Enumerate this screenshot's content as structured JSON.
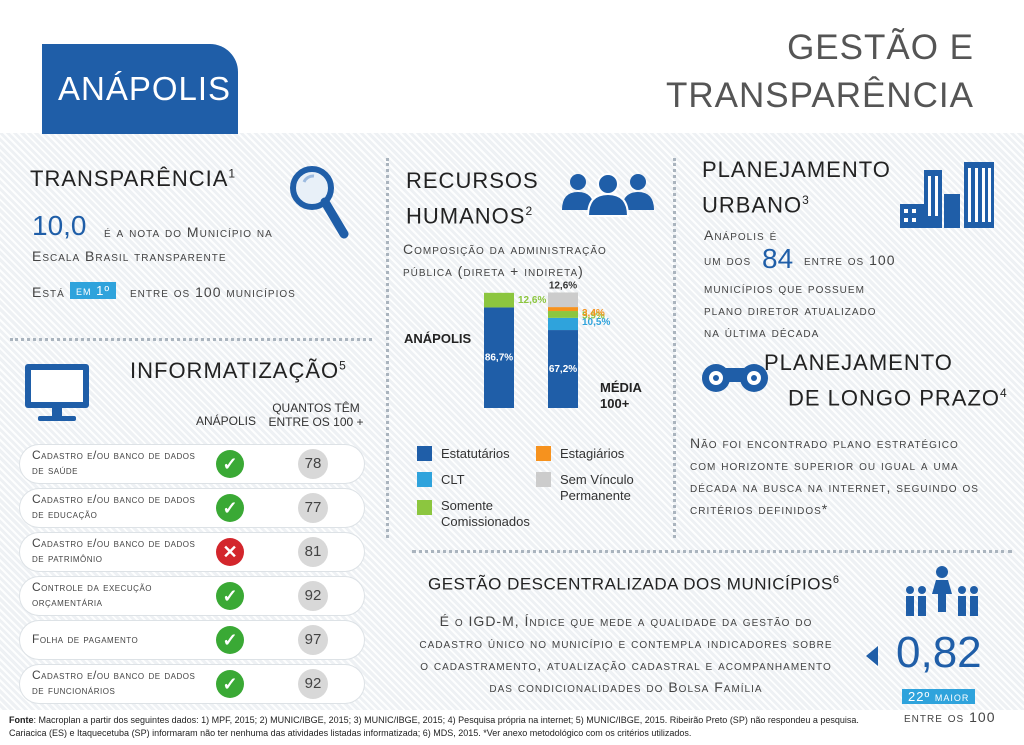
{
  "header": {
    "city": "ANÁPOLIS",
    "title_line1": "GESTÃO E",
    "title_line2": "TRANSPARÊNCIA"
  },
  "colors": {
    "primary_blue": "#1f5ea8",
    "light_blue": "#2fa3dc",
    "green": "#8cc63f",
    "orange": "#f6921e",
    "gray": "#cccccc",
    "check_green": "#3aa935",
    "cross_red": "#d3262c"
  },
  "transparencia": {
    "title": "TRANSPARÊNCIA",
    "sup": "1",
    "score": "10,0",
    "score_text_1": "é a nota do Município na",
    "score_text_2": "Escala Brasil transparente",
    "rank_prefix": "Está",
    "rank_value": "em 1º",
    "rank_suffix": "entre os 100 municípios",
    "icon": "magnifier-icon"
  },
  "informatizacao": {
    "title": "INFORMATIZAÇÃO",
    "sup": "5",
    "icon": "computer-monitor-icon",
    "col_anapolis": "ANÁPOLIS",
    "col_count_1": "QUANTOS TÊM",
    "col_count_2": "ENTRE OS 100 +",
    "rows": [
      {
        "label": "Cadastro e/ou banco de dados de saúde",
        "status": "check",
        "count": "78"
      },
      {
        "label": "Cadastro e/ou banco de dados de educação",
        "status": "check",
        "count": "77"
      },
      {
        "label": "Cadastro e/ou banco de dados de patrimônio",
        "status": "cross",
        "count": "81"
      },
      {
        "label": "Controle da execução orçamentária",
        "status": "check",
        "count": "92"
      },
      {
        "label": "Folha de pagamento",
        "status": "check",
        "count": "97"
      },
      {
        "label": "Cadastro e/ou banco de dados de funcionários",
        "status": "check",
        "count": "92"
      }
    ]
  },
  "recursos": {
    "title_1": "RECURSOS",
    "title_2": "HUMANOS",
    "sup": "2",
    "icon": "people-group-icon",
    "subtitle_1": "Composição da administração",
    "subtitle_2": "pública (direta + indireta)"
  },
  "chart_data": {
    "type": "bar",
    "stacked": true,
    "categories": [
      "ANÁPOLIS",
      "MÉDIA 100+"
    ],
    "series": [
      {
        "name": "Estatutários",
        "color": "#1f5ea8",
        "values": [
          86.7,
          67.2
        ]
      },
      {
        "name": "CLT",
        "color": "#2fa3dc",
        "values": [
          0,
          10.5
        ]
      },
      {
        "name": "Somente Comissionados",
        "color": "#8cc63f",
        "values": [
          12.6,
          5.9
        ]
      },
      {
        "name": "Estagiários",
        "color": "#f6921e",
        "values": [
          0,
          3.4
        ]
      },
      {
        "name": "Sem Vínculo Permanente",
        "color": "#cccccc",
        "values": [
          0,
          12.6
        ]
      }
    ],
    "labels": {
      "anapolis": [
        "86,7%",
        "12,6%"
      ],
      "media": [
        "67,2%",
        "10,5%",
        "5,9%",
        "3,4%",
        "12,6%"
      ]
    },
    "category_labels": {
      "anapolis": "ANÁPOLIS",
      "media_1": "MÉDIA",
      "media_2": "100+"
    },
    "legend": {
      "estatutarios": "Estatutários",
      "estagiarios": "Estagiários",
      "clt": "CLT",
      "sem_vinculo_1": "Sem Vínculo",
      "sem_vinculo_2": "Permanente",
      "comissionados_1": "Somente",
      "comissionados_2": "Comissionados"
    }
  },
  "planejamento_urbano": {
    "title_1": "PLANEJAMENTO",
    "title_2": "URBANO",
    "sup": "3",
    "icon": "buildings-icon",
    "line1": "Anápolis é",
    "line2_prefix": "um dos",
    "number": "84",
    "line2_suffix": "entre os 100",
    "line3": "municípios que possuem",
    "line4": "plano diretor atualizado",
    "line5": "na última década"
  },
  "longo_prazo": {
    "title_1": "PLANEJAMENTO",
    "title_2": "DE LONGO PRAZO",
    "sup": "4",
    "icon": "binoculars-icon",
    "text_1": "Não foi encontrado plano estratégico",
    "text_2": "com horizonte superior ou igual a uma",
    "text_3": "década na busca na internet, seguindo os",
    "text_4": "critérios definidos*"
  },
  "gestao": {
    "title": "GESTÃO DESCENTRALIZADA DOS MUNICÍPIOS",
    "sup": "6",
    "icon": "family-group-icon",
    "text_1": "É o IGD-M, Índice que mede a qualidade da gestão do",
    "text_2": "cadastro único no município e contempla  indicadores sobre",
    "text_3": "o cadastramento, atualização cadastral e acompanhamento",
    "text_4": "das condicionalidades do Bolsa Família",
    "value": "0,82",
    "rank": "22º maior",
    "rank_suffix": "entre os 100"
  },
  "footer": {
    "label": "Fonte",
    "text_1": ": Macroplan a partir dos seguintes dados: 1) MPF, 2015; 2) MUNIC/IBGE, 2015; 3) MUNIC/IBGE, 2015; 4) Pesquisa própria na internet; 5) MUNIC/IBGE, 2015. Ribeirão Preto (SP) não respondeu a pesquisa.",
    "text_2": "Cariacica (ES) e Itaquecetuba (SP) informaram não ter nenhuma das atividades listadas informatizada; 6) MDS, 2015. *Ver anexo metodológico com os critérios utilizados."
  }
}
